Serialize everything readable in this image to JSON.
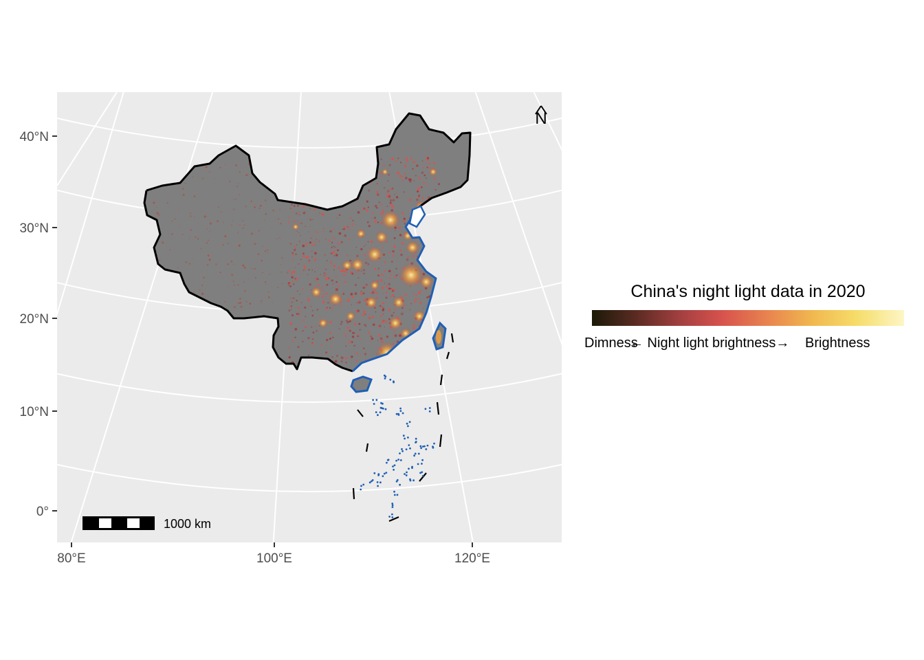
{
  "map": {
    "lat_labels": [
      "40°N",
      "30°N",
      "20°N",
      "10°N",
      "0°"
    ],
    "lon_labels": [
      "80°E",
      "100°E",
      "120°E"
    ],
    "north_arrow_label": "N",
    "scale_bar_label": "1000 km"
  },
  "legend": {
    "title": "China's night light data in 2020",
    "label_left": "Dimness",
    "label_mid": "← Night light brightness→",
    "label_right": "Brightness",
    "colors": [
      "#1c1a08",
      "#5a2b22",
      "#a23f40",
      "#d8534d",
      "#e9864f",
      "#f1b94f",
      "#f6dd6a",
      "#fdf6c6"
    ]
  },
  "colors": {
    "panel_bg": "#ebebeb",
    "grid": "#ffffff",
    "land": "#7f7f7f",
    "border": "#000000",
    "coast": "#1f5fb4",
    "glow": "#f0a040"
  }
}
